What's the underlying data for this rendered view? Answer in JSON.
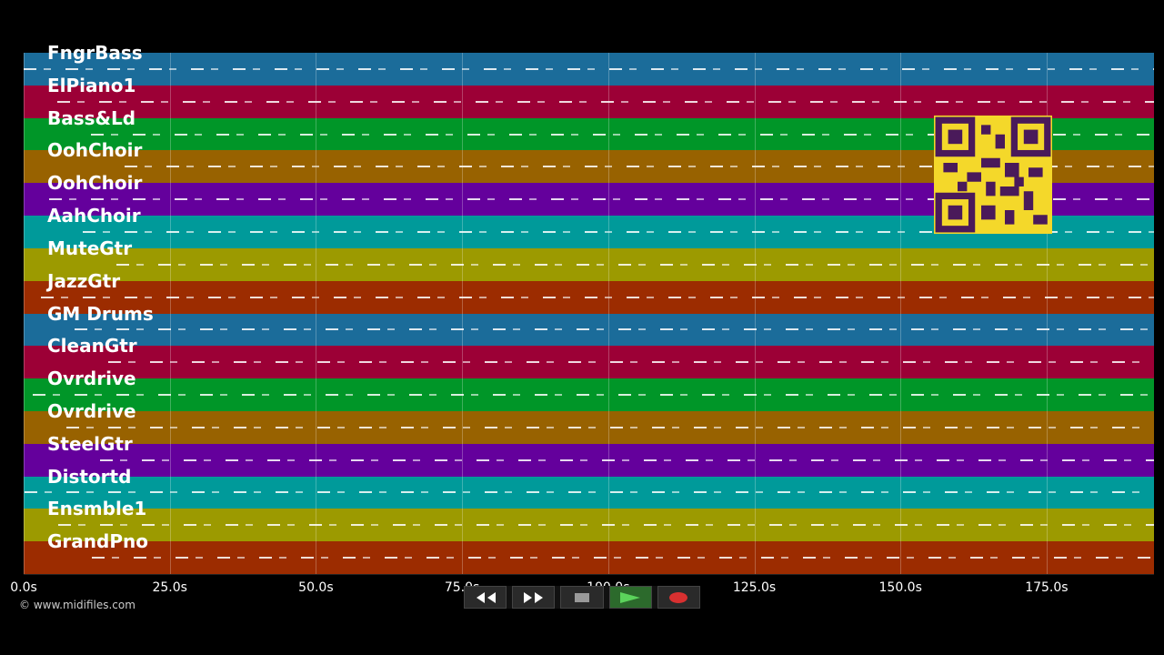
{
  "tracks": [
    {
      "name": "FngrBass",
      "color": "#1b6c9a"
    },
    {
      "name": "ElPiano1",
      "color": "#9c0036"
    },
    {
      "name": "Bass&Ld",
      "color": "#009628"
    },
    {
      "name": "OohChoir",
      "color": "#986200"
    },
    {
      "name": "OohChoir",
      "color": "#64009c"
    },
    {
      "name": "AahChoir",
      "color": "#009a9a"
    },
    {
      "name": "MuteGtr",
      "color": "#9c9a00"
    },
    {
      "name": "JazzGtr",
      "color": "#9c2c00"
    },
    {
      "name": "GM Drums",
      "color": "#1b6c9a"
    },
    {
      "name": "CleanGtr",
      "color": "#9c0036"
    },
    {
      "name": "Ovrdrive",
      "color": "#009628"
    },
    {
      "name": "Ovrdrive",
      "color": "#986200"
    },
    {
      "name": "SteelGtr",
      "color": "#64009c"
    },
    {
      "name": "Distortd",
      "color": "#009a9a"
    },
    {
      "name": "Ensmble1",
      "color": "#9c9a00"
    },
    {
      "name": "GrandPno",
      "color": "#9c2c00"
    }
  ],
  "time_axis": {
    "ticks": [
      "0.0s",
      "25.0s",
      "50.0s",
      "75.0s",
      "100.0s",
      "125.0s",
      "150.0s",
      "175.0s"
    ]
  },
  "footer": {
    "copyright": "© www.midifiles.com"
  }
}
